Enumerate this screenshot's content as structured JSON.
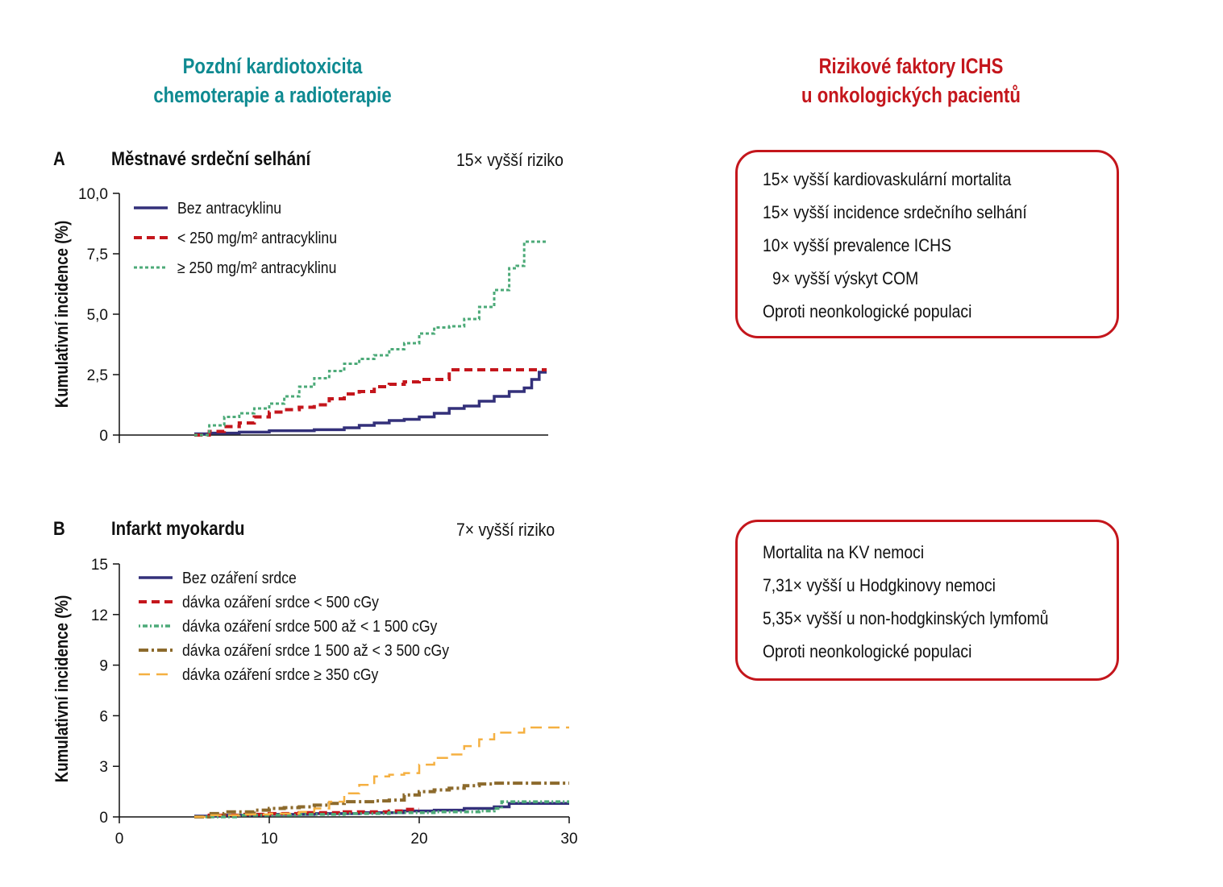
{
  "colors": {
    "teal": "#0e8a91",
    "red": "#c4161c"
  },
  "left_heading": {
    "line1": "Pozdní kardiotoxicita",
    "line2": "chemoterapie a radioterapie"
  },
  "right_heading": {
    "line1": "Rizikové faktory ICHS",
    "line2": "u onkologických pacientů"
  },
  "panel_a": {
    "letter": "A",
    "title": "Městnavé srdeční selhání",
    "risk": "15× vyšší riziko"
  },
  "panel_b": {
    "letter": "B",
    "title": "Infarkt myokardu",
    "risk": "7× vyšší riziko"
  },
  "box_a": {
    "lines": [
      "15× vyšší kardiovaskulární mortalita",
      "15× vyšší incidence srdečního selhání",
      "10× vyšší prevalence ICHS",
      "9× vyšší výskyt COM",
      "Oproti neonkologické populaci"
    ]
  },
  "box_b": {
    "lines": [
      "Mortalita na KV nemoci",
      "7,31× vyšší u Hodgkinovy nemoci",
      "5,35× vyšší u non-hodgkinských lymfomů",
      "Oproti neonkologické populaci"
    ]
  },
  "chart_data": [
    {
      "type": "line",
      "step": true,
      "title": "Městnavé srdeční selhání",
      "xlabel": "",
      "ylabel": "Kumulativní incidence (%)",
      "xlim": [
        0,
        30
      ],
      "ylim": [
        0,
        10
      ],
      "yticks": [
        0,
        2.5,
        5,
        7.5,
        10
      ],
      "ytick_labels": [
        "0",
        "2,5",
        "5,0",
        "7,5",
        "10,0"
      ],
      "legend_position": "top-left",
      "series": [
        {
          "name": "Bez antracyklinu",
          "color": "#33307a",
          "style": "solid",
          "x": [
            5,
            6,
            8,
            10,
            13,
            15,
            16,
            17,
            18,
            19,
            20,
            21,
            22,
            23,
            24,
            25,
            26,
            27,
            27.5,
            28,
            28.5
          ],
          "y": [
            0.05,
            0.08,
            0.12,
            0.18,
            0.22,
            0.3,
            0.4,
            0.5,
            0.6,
            0.65,
            0.75,
            0.9,
            1.1,
            1.2,
            1.4,
            1.6,
            1.8,
            1.95,
            2.3,
            2.6,
            2.6
          ]
        },
        {
          "name": "< 250 mg/m² antracyklinu",
          "color": "#c4161c",
          "style": "dashed",
          "x": [
            5,
            6,
            7,
            8,
            9,
            10,
            11,
            12,
            13,
            14,
            15,
            16,
            17,
            18,
            19,
            20,
            21,
            22,
            23,
            24,
            25,
            26,
            27,
            28,
            28.5
          ],
          "y": [
            0,
            0.15,
            0.35,
            0.5,
            0.75,
            0.95,
            1.05,
            1.15,
            1.25,
            1.5,
            1.7,
            1.8,
            2.0,
            2.1,
            2.2,
            2.3,
            2.3,
            2.7,
            2.7,
            2.7,
            2.7,
            2.7,
            2.7,
            2.7,
            2.7
          ]
        },
        {
          "name": "≥ 250 mg/m² antracyklinu",
          "color": "#4caa78",
          "style": "dotted",
          "x": [
            5,
            6,
            7,
            8,
            9,
            10,
            11,
            12,
            13,
            14,
            15,
            16,
            17,
            18,
            19,
            20,
            21,
            22,
            23,
            24,
            25,
            26,
            26.5,
            27,
            28,
            28.5
          ],
          "y": [
            0,
            0.4,
            0.75,
            0.9,
            1.1,
            1.3,
            1.6,
            2.0,
            2.35,
            2.65,
            2.95,
            3.15,
            3.3,
            3.55,
            3.8,
            4.2,
            4.45,
            4.5,
            4.8,
            5.3,
            6.0,
            6.9,
            7.0,
            8.0,
            8.0,
            8.0
          ]
        }
      ]
    },
    {
      "type": "line",
      "step": true,
      "title": "Infarkt myokardu",
      "xlabel": "",
      "ylabel": "Kumulativní incidence (%)",
      "xlim": [
        0,
        30
      ],
      "ylim": [
        0,
        15
      ],
      "xticks": [
        0,
        10,
        20,
        30
      ],
      "yticks": [
        0,
        3,
        6,
        9,
        12,
        15
      ],
      "legend_position": "top-left",
      "series": [
        {
          "name": "Bez ozáření srdce",
          "color": "#33307a",
          "style": "solid",
          "x": [
            5,
            7,
            10,
            13,
            16,
            19,
            21,
            23,
            25,
            26,
            27,
            30
          ],
          "y": [
            0.05,
            0.1,
            0.15,
            0.2,
            0.25,
            0.35,
            0.4,
            0.5,
            0.6,
            0.8,
            0.8,
            0.8
          ]
        },
        {
          "name": "dávka ozáření srdce < 500 cGy",
          "color": "#c4161c",
          "style": "dashed",
          "x": [
            5,
            6,
            8,
            10,
            12,
            15,
            18,
            19,
            20
          ],
          "y": [
            0,
            0.1,
            0.15,
            0.2,
            0.25,
            0.3,
            0.35,
            0.45,
            0.45
          ]
        },
        {
          "name": "dávka ozáření srdce 500 až < 1 500 cGy",
          "color": "#4caa78",
          "style": "dotdash",
          "x": [
            5,
            8,
            12,
            15,
            18,
            21,
            24,
            25,
            25.5,
            30
          ],
          "y": [
            0,
            0.1,
            0.15,
            0.2,
            0.25,
            0.3,
            0.35,
            0.5,
            0.9,
            0.9
          ]
        },
        {
          "name": "dávka ozáření srdce 1 500 až < 3 500 cGy",
          "color": "#8c6a2c",
          "style": "dashdot",
          "x": [
            5,
            6,
            7,
            9,
            10,
            11,
            12,
            13,
            14,
            15,
            16,
            17,
            18,
            19,
            20,
            21,
            22,
            23,
            24,
            25,
            30
          ],
          "y": [
            0,
            0.2,
            0.3,
            0.4,
            0.5,
            0.55,
            0.6,
            0.7,
            0.8,
            0.9,
            0.9,
            0.95,
            1.0,
            1.3,
            1.5,
            1.6,
            1.7,
            1.85,
            1.95,
            2.0,
            2.0
          ]
        },
        {
          "name": "dávka ozáření srdce ≥ 350 cGy",
          "color": "#f5b041",
          "style": "longdash",
          "x": [
            5,
            6,
            8,
            10,
            12,
            13,
            14,
            15,
            16,
            17,
            18,
            19,
            20,
            21,
            22,
            23,
            24,
            25,
            26,
            27,
            30
          ],
          "y": [
            0,
            0.1,
            0.15,
            0.2,
            0.3,
            0.5,
            0.9,
            1.4,
            1.9,
            2.4,
            2.5,
            2.6,
            3.1,
            3.5,
            3.7,
            4.2,
            4.6,
            5.0,
            5.0,
            5.3,
            5.3
          ]
        }
      ]
    }
  ]
}
